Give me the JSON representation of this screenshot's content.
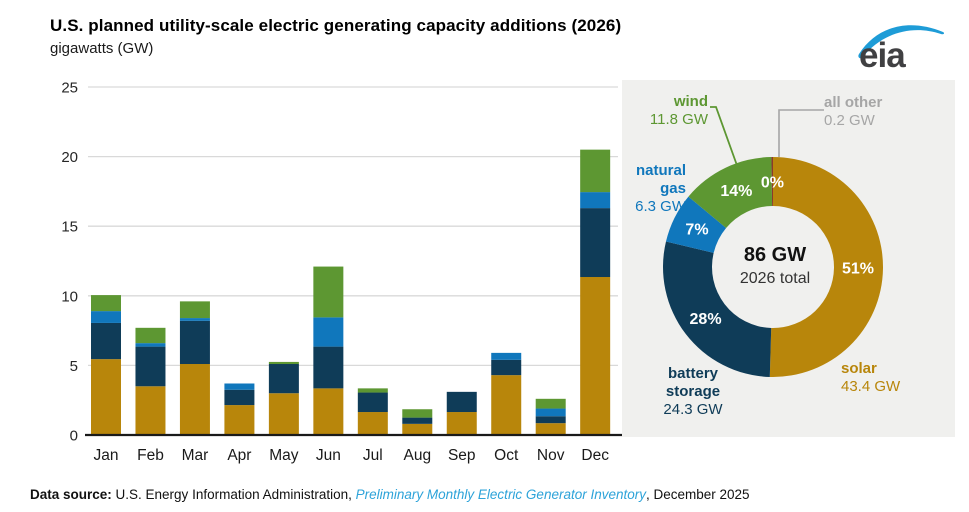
{
  "header": {
    "title": "U.S. planned utility-scale electric generating capacity additions (2026)",
    "units": "gigawatts (GW)",
    "logo_text": "eia"
  },
  "footer": {
    "label": "Data source:",
    "text": " U.S. Energy Information Administration, ",
    "link": "Preliminary Monthly Electric Generator Inventory",
    "suffix": ", December 2025"
  },
  "colors": {
    "solar": "#b8860b",
    "battery_storage": "#0f3c58",
    "natural_gas": "#1077bc",
    "wind": "#5d9732",
    "all_other": "#8b3a2b",
    "panel_bg": "#f0f0ee",
    "gridline": "#d9d9d9",
    "axis": "#1a1a1a",
    "tick_text": "#262626",
    "gray_label": "#a6a6a6",
    "leader_gray": "#a6a6a6",
    "link_blue": "#2da3d9",
    "logo_blue": "#1e9cd7",
    "logo_text": "#404042",
    "pct_text": "#ffffff"
  },
  "chart_data": [
    {
      "type": "bar",
      "stacked": true,
      "title": "U.S. planned utility-scale electric generating capacity additions (2026)",
      "xlabel": "",
      "ylabel": "gigawatts (GW)",
      "ylim": [
        0,
        25
      ],
      "yticks": [
        0,
        5,
        10,
        15,
        20,
        25
      ],
      "grid": true,
      "legend": "none (colors keyed to donut labels)",
      "categories": [
        "Jan",
        "Feb",
        "Mar",
        "Apr",
        "May",
        "Jun",
        "Jul",
        "Aug",
        "Sep",
        "Oct",
        "Nov",
        "Dec"
      ],
      "series": [
        {
          "name": "solar",
          "color": "#b8860b",
          "values": [
            5.45,
            3.5,
            5.1,
            2.15,
            3.0,
            3.35,
            1.65,
            0.8,
            1.65,
            4.3,
            0.85,
            11.35
          ]
        },
        {
          "name": "battery storage",
          "color": "#0f3c58",
          "values": [
            2.6,
            2.85,
            3.1,
            1.1,
            2.1,
            3.0,
            1.4,
            0.45,
            1.45,
            1.1,
            0.5,
            4.95
          ]
        },
        {
          "name": "natural gas",
          "color": "#1077bc",
          "values": [
            0.85,
            0.25,
            0.2,
            0.45,
            0,
            2.1,
            0,
            0,
            0,
            0.5,
            0.55,
            1.15
          ]
        },
        {
          "name": "wind",
          "color": "#5d9732",
          "values": [
            1.15,
            1.1,
            1.2,
            0,
            0.15,
            3.65,
            0.3,
            0.6,
            0,
            0,
            0.7,
            3.05
          ]
        }
      ]
    },
    {
      "type": "pie",
      "subtype": "donut",
      "start_angle_deg": 0,
      "direction": "clockwise",
      "total_gw": 86,
      "center_title": "86 GW",
      "center_subtitle": "2026 total",
      "slices": [
        {
          "label": "solar",
          "value_gw": 43.4,
          "value_text": "43.4 GW",
          "pct_label": "51%",
          "color": "#b8860b"
        },
        {
          "label": "battery storage",
          "value_gw": 24.3,
          "value_text": "24.3 GW",
          "pct_label": "28%",
          "color": "#0f3c58"
        },
        {
          "label": "natural gas",
          "value_gw": 6.3,
          "value_text": "6.3 GW",
          "pct_label": "7%",
          "color": "#1077bc"
        },
        {
          "label": "wind",
          "value_gw": 11.8,
          "value_text": "11.8 GW",
          "pct_label": "14%",
          "color": "#5d9732"
        },
        {
          "label": "all other",
          "value_gw": 0.2,
          "value_text": "0.2 GW",
          "pct_label": "0%",
          "color": "#8b3a2b"
        }
      ]
    }
  ]
}
